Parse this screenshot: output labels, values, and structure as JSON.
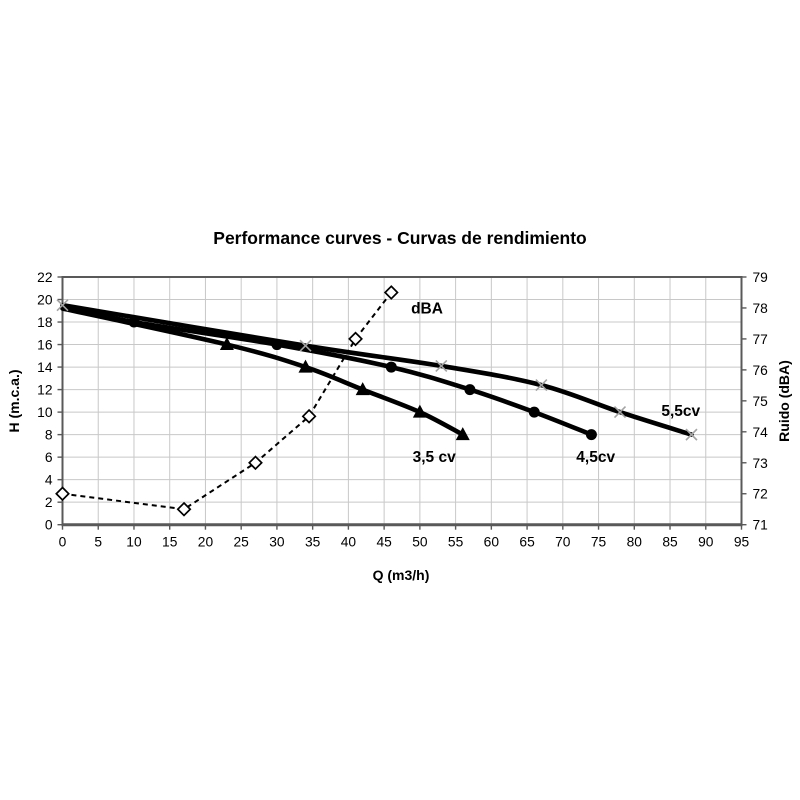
{
  "page": {
    "background": "#ffffff"
  },
  "chart_data": {
    "type": "line",
    "title": "Performance curves - Curvas de rendimiento",
    "xlabel": "Q (m3/h)",
    "ylabel_left": "H (m.c.a.)",
    "ylabel_right": "Ruido (dBA)",
    "x_range": [
      0,
      95
    ],
    "x_tick_step": 5,
    "y_left_range": [
      0,
      22
    ],
    "y_left_tick_step": 2,
    "y_right_range": [
      71,
      79
    ],
    "y_right_tick_step": 1,
    "grid": true,
    "legend_position": "none",
    "series": [
      {
        "name": "dBA",
        "axis": "right",
        "line": "dashed",
        "marker": "diamond-open",
        "markers_from": 0,
        "points": [
          [
            0,
            72
          ],
          [
            17,
            71.5
          ],
          [
            27,
            73
          ],
          [
            34.5,
            74.5
          ],
          [
            41,
            77
          ],
          [
            46,
            78.5
          ]
        ]
      },
      {
        "name": "5,5cv",
        "axis": "left",
        "line": "solid",
        "marker": "x-gray",
        "markers_from": 0,
        "points": [
          [
            0,
            19.5
          ],
          [
            34,
            15.9
          ],
          [
            53,
            14.1
          ],
          [
            67,
            12.4
          ],
          [
            78,
            10
          ],
          [
            88,
            8
          ]
        ]
      },
      {
        "name": "4,5cv",
        "axis": "left",
        "line": "solid",
        "marker": "circle",
        "markers_from": 1,
        "points": [
          [
            0,
            19.4
          ],
          [
            10,
            18
          ],
          [
            30,
            16
          ],
          [
            46,
            14
          ],
          [
            57,
            12
          ],
          [
            66,
            10
          ],
          [
            74,
            8
          ]
        ]
      },
      {
        "name": "3,5 cv",
        "axis": "left",
        "line": "solid",
        "marker": "triangle",
        "markers_from": 1,
        "points": [
          [
            0,
            19.2
          ],
          [
            23,
            16
          ],
          [
            34,
            14
          ],
          [
            42,
            12
          ],
          [
            50,
            10
          ],
          [
            56,
            8
          ]
        ]
      }
    ],
    "annotations": [
      {
        "label": "dBA",
        "x": 51,
        "y": 19.2
      },
      {
        "label": "3,5 cv",
        "x": 52,
        "y": 6.0
      },
      {
        "label": "4,5cv",
        "x": 74.6,
        "y": 6.0
      },
      {
        "label": "5,5cv",
        "x": 86.5,
        "y": 10.1
      }
    ],
    "colors": {
      "curve": "#000000",
      "dashed_curve": "#000000",
      "grid": "#c8c8c8",
      "axis": "#595959",
      "x_marker": "#a3a3a3",
      "diamond_fill": "#ffffff",
      "text": "#000000",
      "background": "#ffffff"
    }
  }
}
